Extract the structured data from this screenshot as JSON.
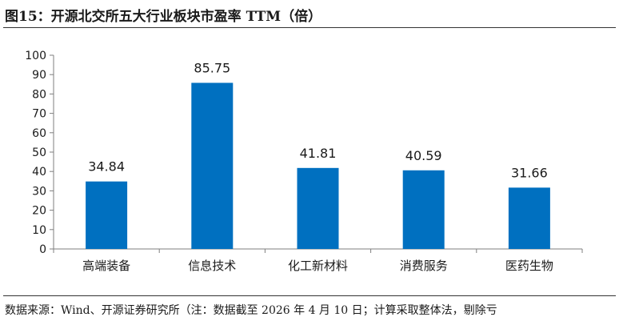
{
  "figure": {
    "title": "图15：开源北交所五大行业板块市盈率 TTM（倍）",
    "source": "数据来源：Wind、开源证券研究所（注：数据截至 2026 年 4 月 10 日；计算采取整体法，剔除亏"
  },
  "chart_data": {
    "type": "bar",
    "title": "",
    "xlabel": "",
    "ylabel": "",
    "categories": [
      "高端装备",
      "信息技术",
      "化工新材料",
      "消费服务",
      "医药生物"
    ],
    "values": [
      34.84,
      85.75,
      41.81,
      40.59,
      31.66
    ],
    "value_labels": [
      "34.84",
      "85.75",
      "41.81",
      "40.59",
      "31.66"
    ],
    "yticks": [
      "0",
      "10",
      "20",
      "30",
      "40",
      "50",
      "60",
      "70",
      "80",
      "90",
      "100"
    ],
    "ylim": [
      0,
      100
    ],
    "grid": false,
    "legend": "none",
    "bar_color": "#0070C0"
  }
}
